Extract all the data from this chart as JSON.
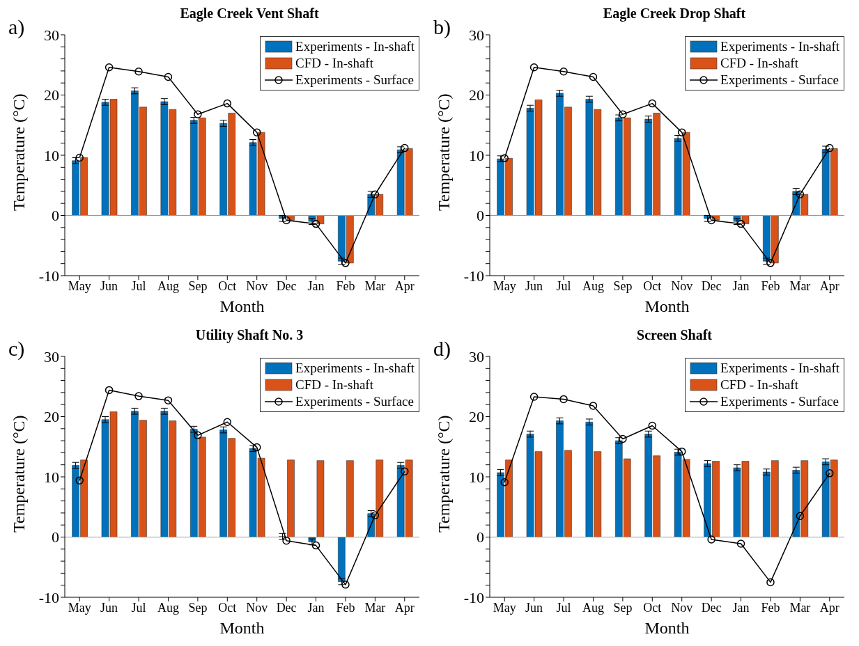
{
  "chart_data": [
    {
      "type": "bar",
      "title": "Eagle Creek Vent Shaft",
      "annotations": [
        "a)"
      ],
      "xlabel": "Month",
      "ylabel": "Temperature (°C)",
      "categories": [
        "May",
        "Jun",
        "Jul",
        "Aug",
        "Sep",
        "Oct",
        "Nov",
        "Dec",
        "Jan",
        "Feb",
        "Mar",
        "Apr"
      ],
      "ylim": [
        -10,
        30
      ],
      "yticks": [
        -10,
        {
          "value": -8,
          "label": null
        },
        {
          "value": -6,
          "label": null
        },
        {
          "value": -4,
          "label": null
        },
        {
          "value": -2,
          "label": null
        },
        0,
        {
          "value": 2,
          "label": null
        },
        {
          "value": 4,
          "label": null
        },
        {
          "value": 6,
          "label": null
        },
        {
          "value": 8,
          "label": null
        },
        10,
        {
          "value": 12,
          "label": null
        },
        {
          "value": 14,
          "label": null
        },
        {
          "value": 16,
          "label": null
        },
        {
          "value": 18,
          "label": null
        },
        20,
        {
          "value": 22,
          "label": null
        },
        {
          "value": 24,
          "label": null
        },
        {
          "value": 26,
          "label": null
        },
        {
          "value": 28,
          "label": null
        },
        30
      ],
      "legend": "top right",
      "series": [
        {
          "name": "Experiments - In-shaft",
          "color": "#0072bd",
          "values": [
            9.1,
            18.8,
            20.7,
            18.9,
            15.8,
            15.3,
            12.1,
            -0.5,
            -1.0,
            -7.6,
            3.5,
            10.9
          ],
          "errors": [
            0.5,
            0.5,
            0.5,
            0.5,
            0.5,
            0.5,
            0.5,
            0.5,
            0.5,
            0.5,
            0.5,
            0.5
          ]
        },
        {
          "name": "CFD - In-shaft",
          "color": "#d95319",
          "values": [
            9.6,
            19.3,
            18.0,
            17.6,
            16.2,
            17.0,
            13.8,
            -0.8,
            -1.4,
            -7.9,
            3.5,
            11.1
          ]
        },
        {
          "name": "Experiments - Surface",
          "type": "line",
          "color": "#000000",
          "marker": "circle",
          "values": [
            9.6,
            24.6,
            23.9,
            23.0,
            16.8,
            18.6,
            13.8,
            -0.8,
            -1.4,
            -7.9,
            3.5,
            11.2
          ]
        }
      ]
    },
    {
      "type": "bar",
      "title": "Eagle Creek Drop Shaft",
      "annotations": [
        "b)"
      ],
      "xlabel": "Month",
      "ylabel": "Temperature (°C)",
      "categories": [
        "May",
        "Jun",
        "Jul",
        "Aug",
        "Sep",
        "Oct",
        "Nov",
        "Dec",
        "Jan",
        "Feb",
        "Mar",
        "Apr"
      ],
      "ylim": [
        -10,
        30
      ],
      "yticks": [
        -10,
        {
          "value": -8,
          "label": null
        },
        {
          "value": -6,
          "label": null
        },
        {
          "value": -4,
          "label": null
        },
        {
          "value": -2,
          "label": null
        },
        0,
        {
          "value": 2,
          "label": null
        },
        {
          "value": 4,
          "label": null
        },
        {
          "value": 6,
          "label": null
        },
        {
          "value": 8,
          "label": null
        },
        10,
        {
          "value": 12,
          "label": null
        },
        {
          "value": 14,
          "label": null
        },
        {
          "value": 16,
          "label": null
        },
        {
          "value": 18,
          "label": null
        },
        20,
        {
          "value": 22,
          "label": null
        },
        {
          "value": 24,
          "label": null
        },
        {
          "value": 26,
          "label": null
        },
        {
          "value": 28,
          "label": null
        },
        30
      ],
      "legend": "top right",
      "series": [
        {
          "name": "Experiments - In-shaft",
          "color": "#0072bd",
          "values": [
            9.4,
            17.8,
            20.3,
            19.3,
            16.2,
            16.0,
            12.8,
            -0.5,
            -1.0,
            -7.6,
            4.0,
            11.0
          ],
          "errors": [
            0.5,
            0.5,
            0.5,
            0.5,
            0.5,
            0.5,
            0.5,
            0.5,
            0.5,
            0.5,
            0.5,
            0.5
          ]
        },
        {
          "name": "CFD - In-shaft",
          "color": "#d95319",
          "values": [
            9.5,
            19.2,
            18.0,
            17.6,
            16.2,
            17.0,
            13.8,
            -0.8,
            -1.4,
            -7.9,
            3.5,
            11.1
          ]
        },
        {
          "name": "Experiments - Surface",
          "type": "line",
          "color": "#000000",
          "marker": "circle",
          "values": [
            9.5,
            24.6,
            23.9,
            23.0,
            16.8,
            18.6,
            13.8,
            -0.8,
            -1.4,
            -7.9,
            3.5,
            11.2
          ]
        }
      ]
    },
    {
      "type": "bar",
      "title": "Utility Shaft No. 3",
      "annotations": [
        "c)"
      ],
      "xlabel": "Month",
      "ylabel": "Temperature (°C)",
      "categories": [
        "May",
        "Jun",
        "Jul",
        "Aug",
        "Sep",
        "Oct",
        "Nov",
        "Dec",
        "Jan",
        "Feb",
        "Mar",
        "Apr"
      ],
      "ylim": [
        -10,
        30
      ],
      "yticks": [
        -10,
        {
          "value": -8,
          "label": null
        },
        {
          "value": -6,
          "label": null
        },
        {
          "value": -4,
          "label": null
        },
        {
          "value": -2,
          "label": null
        },
        0,
        {
          "value": 2,
          "label": null
        },
        {
          "value": 4,
          "label": null
        },
        {
          "value": 6,
          "label": null
        },
        {
          "value": 8,
          "label": null
        },
        10,
        {
          "value": 12,
          "label": null
        },
        {
          "value": 14,
          "label": null
        },
        {
          "value": 16,
          "label": null
        },
        {
          "value": 18,
          "label": null
        },
        20,
        {
          "value": 22,
          "label": null
        },
        {
          "value": 24,
          "label": null
        },
        {
          "value": 26,
          "label": null
        },
        {
          "value": 28,
          "label": null
        },
        30
      ],
      "legend": "top right",
      "series": [
        {
          "name": "Experiments - In-shaft",
          "color": "#0072bd",
          "values": [
            11.9,
            19.5,
            20.9,
            20.9,
            17.9,
            17.8,
            14.7,
            0.1,
            -0.8,
            -7.4,
            3.9,
            11.9
          ],
          "errors": [
            0.5,
            0.5,
            0.5,
            0.5,
            0.5,
            0.5,
            0.5,
            0.5,
            0.5,
            0.5,
            0.5,
            0.5
          ]
        },
        {
          "name": "CFD - In-shaft",
          "color": "#d95319",
          "values": [
            12.8,
            20.8,
            19.4,
            19.3,
            16.6,
            16.4,
            13.1,
            12.8,
            12.7,
            12.7,
            12.8,
            12.8
          ]
        },
        {
          "name": "Experiments - Surface",
          "type": "line",
          "color": "#000000",
          "marker": "circle",
          "values": [
            9.4,
            24.4,
            23.4,
            22.7,
            16.9,
            19.1,
            14.9,
            -0.6,
            -1.4,
            -7.9,
            3.6,
            10.9
          ]
        }
      ]
    },
    {
      "type": "bar",
      "title": "Screen Shaft",
      "annotations": [
        "d)"
      ],
      "xlabel": "Month",
      "ylabel": "Temperature (°C)",
      "categories": [
        "May",
        "Jun",
        "Jul",
        "Aug",
        "Sep",
        "Oct",
        "Nov",
        "Dec",
        "Jan",
        "Feb",
        "Mar",
        "Apr"
      ],
      "ylim": [
        -10,
        30
      ],
      "yticks": [
        -10,
        {
          "value": -8,
          "label": null
        },
        {
          "value": -6,
          "label": null
        },
        {
          "value": -4,
          "label": null
        },
        {
          "value": -2,
          "label": null
        },
        0,
        {
          "value": 2,
          "label": null
        },
        {
          "value": 4,
          "label": null
        },
        {
          "value": 6,
          "label": null
        },
        {
          "value": 8,
          "label": null
        },
        10,
        {
          "value": 12,
          "label": null
        },
        {
          "value": 14,
          "label": null
        },
        {
          "value": 16,
          "label": null
        },
        {
          "value": 18,
          "label": null
        },
        20,
        {
          "value": 22,
          "label": null
        },
        {
          "value": 24,
          "label": null
        },
        {
          "value": 26,
          "label": null
        },
        {
          "value": 28,
          "label": null
        },
        30
      ],
      "legend": "top right",
      "series": [
        {
          "name": "Experiments - In-shaft",
          "color": "#0072bd",
          "values": [
            10.7,
            17.1,
            19.3,
            19.1,
            16.0,
            17.1,
            14.1,
            12.2,
            11.5,
            10.8,
            11.1,
            12.5
          ],
          "errors": [
            0.5,
            0.5,
            0.5,
            0.5,
            0.5,
            0.5,
            0.5,
            0.5,
            0.5,
            0.5,
            0.5,
            0.5
          ]
        },
        {
          "name": "CFD - In-shaft",
          "color": "#d95319",
          "values": [
            12.8,
            14.2,
            14.4,
            14.2,
            13.0,
            13.5,
            12.9,
            12.6,
            12.6,
            12.7,
            12.7,
            12.8
          ]
        },
        {
          "name": "Experiments - Surface",
          "type": "line",
          "color": "#000000",
          "marker": "circle",
          "values": [
            9.1,
            23.3,
            22.9,
            21.8,
            16.3,
            18.5,
            14.2,
            -0.4,
            -1.1,
            -7.5,
            3.5,
            10.6
          ]
        }
      ]
    }
  ]
}
